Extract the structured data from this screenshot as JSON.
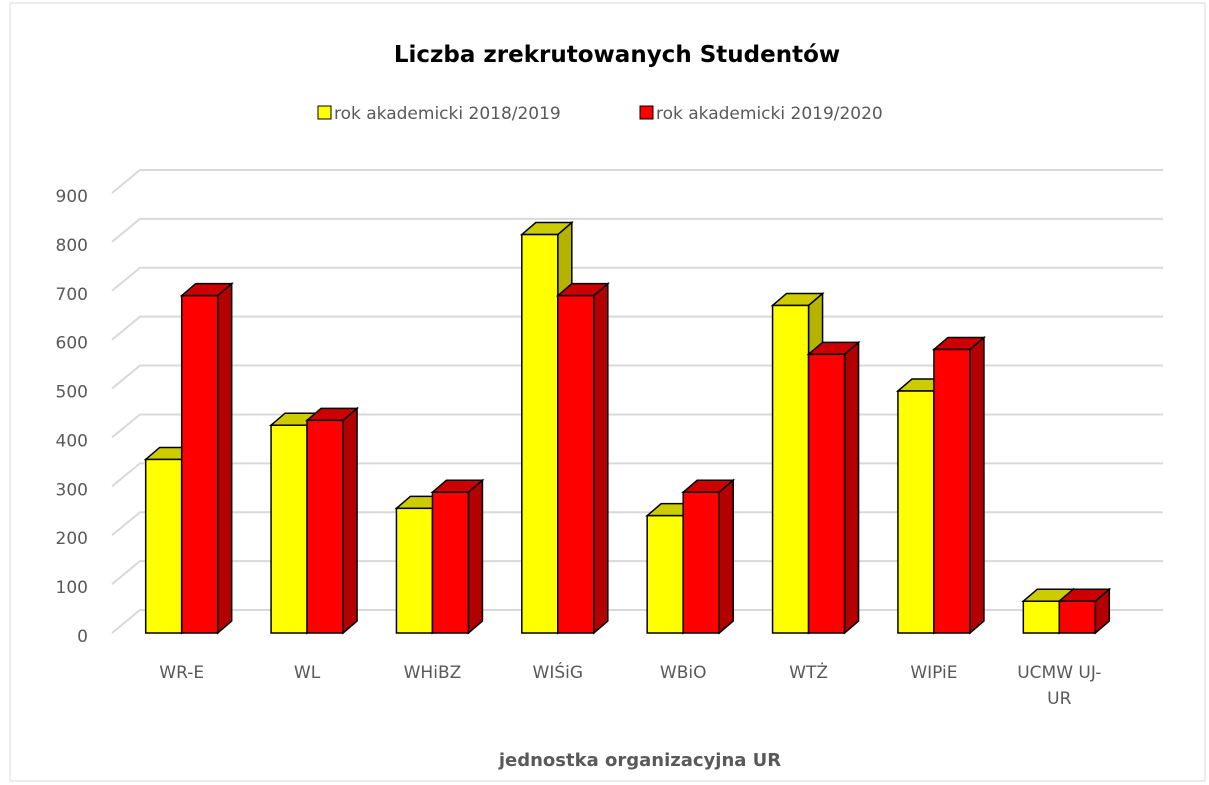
{
  "chart_data": {
    "type": "bar3d",
    "title": "Liczba zrekrutowanych Studentów",
    "x_label": "jednostka organizacyjna UR",
    "categories": [
      "WR-E",
      "WL",
      "WHiBZ",
      "WIŚiG",
      "WBiO",
      "WTŻ",
      "WIPiE",
      "UCMW UJ-UR"
    ],
    "series": [
      {
        "name": "rok akademicki 2018/2019",
        "color": "#ffff00",
        "values": [
          355,
          425,
          255,
          815,
          240,
          670,
          495,
          65
        ]
      },
      {
        "name": "rok akademicki 2019/2020",
        "color": "#ff0000",
        "values": [
          690,
          435,
          288,
          690,
          288,
          570,
          580,
          65
        ]
      }
    ],
    "ylim": [
      0,
      900
    ],
    "yticks": [
      0,
      100,
      200,
      300,
      400,
      500,
      600,
      700,
      800,
      900
    ],
    "grid": true,
    "legend": "top"
  }
}
